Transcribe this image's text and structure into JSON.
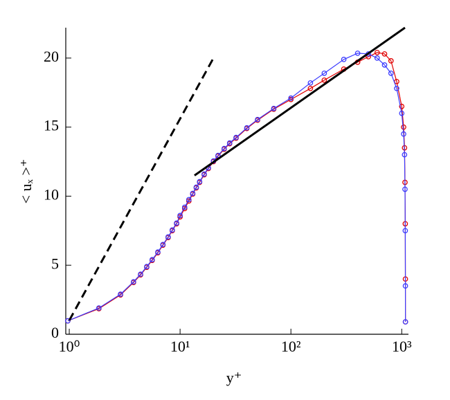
{
  "chart_data": {
    "type": "line",
    "x_label": "y⁺",
    "y_label": "< uₓ >⁺",
    "xscale": "log",
    "xlim": [
      0.93,
      1150
    ],
    "ylim": [
      0,
      22.2
    ],
    "xticks": [
      {
        "value": 1,
        "label": "10⁰"
      },
      {
        "value": 10,
        "label": "10¹"
      },
      {
        "value": 100,
        "label": "10²"
      },
      {
        "value": 1000,
        "label": "10³"
      }
    ],
    "yticks": [
      0,
      5,
      10,
      15,
      20
    ],
    "series": [
      {
        "color": "#e00000",
        "marker": "circle",
        "line_style": "solid",
        "x": [
          0.97,
          1.85,
          2.9,
          3.8,
          4.4,
          5,
          5.6,
          6.3,
          7,
          7.8,
          8.5,
          9.3,
          10,
          11,
          12,
          13,
          14,
          15,
          16.5,
          18,
          20,
          22,
          25,
          28,
          32,
          40,
          50,
          70,
          100,
          150,
          200,
          300,
          400,
          500,
          600,
          700,
          800,
          900,
          1000,
          1040,
          1060,
          1070,
          1076,
          1079,
          1080
        ],
        "values": [
          0.97,
          1.85,
          2.85,
          3.75,
          4.3,
          4.85,
          5.35,
          5.9,
          6.45,
          7.0,
          7.5,
          8.0,
          8.5,
          9.1,
          9.65,
          10.15,
          10.6,
          11.0,
          11.55,
          12.0,
          12.5,
          12.9,
          13.4,
          13.8,
          14.2,
          14.9,
          15.5,
          16.3,
          17.0,
          17.8,
          18.4,
          19.2,
          19.7,
          20.1,
          20.4,
          20.3,
          19.8,
          18.3,
          16.5,
          15,
          13.5,
          11,
          8,
          4,
          0.9
        ]
      },
      {
        "color": "#3c3cff",
        "marker": "circle",
        "line_style": "solid",
        "x": [
          0.97,
          1.85,
          2.9,
          3.8,
          4.4,
          5,
          5.6,
          6.3,
          7,
          7.8,
          8.5,
          9.3,
          10,
          11,
          12,
          13,
          14,
          15,
          16.5,
          18,
          20,
          22,
          25,
          28,
          32,
          40,
          50,
          70,
          100,
          150,
          200,
          300,
          400,
          500,
          600,
          700,
          800,
          900,
          1000,
          1040,
          1060,
          1070,
          1076,
          1079,
          1080
        ],
        "values": [
          0.97,
          1.9,
          2.9,
          3.8,
          4.35,
          4.9,
          5.4,
          5.95,
          6.5,
          7.05,
          7.55,
          8.05,
          8.6,
          9.2,
          9.75,
          10.2,
          10.65,
          11.05,
          11.6,
          12.05,
          12.55,
          12.95,
          13.45,
          13.85,
          14.25,
          14.95,
          15.55,
          16.35,
          17.1,
          18.2,
          18.9,
          19.9,
          20.35,
          20.3,
          20.0,
          19.5,
          18.9,
          17.8,
          16,
          14.5,
          13,
          10.5,
          7.5,
          3.5,
          0.9
        ]
      },
      {
        "color": "#000000",
        "marker": "none",
        "line_style": "dashed",
        "x": [
          1,
          20
        ],
        "values": [
          1,
          20
        ]
      },
      {
        "color": "#000000",
        "marker": "none",
        "line_style": "solid",
        "x": [
          13.5,
          1070
        ],
        "values": [
          11.5,
          22.2
        ]
      }
    ]
  }
}
